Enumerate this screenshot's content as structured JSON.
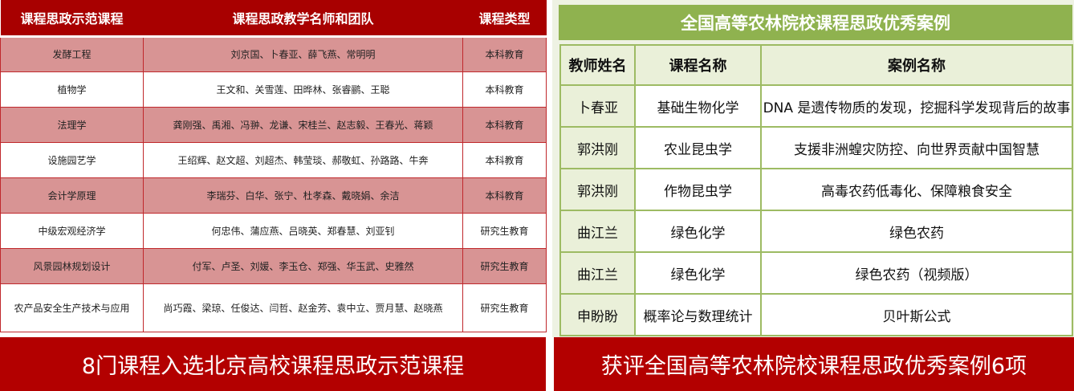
{
  "left": {
    "headers": [
      "课程思政示范课程",
      "课程思政教学名师和团队",
      "课程类型"
    ],
    "rows": [
      {
        "course": "发酵工程",
        "team": "刘京国、卜春亚、薛飞燕、常明明",
        "type": "本科教育"
      },
      {
        "course": "植物学",
        "team": "王文和、关雪莲、田晔林、张睿鹂、王聪",
        "type": "本科教育"
      },
      {
        "course": "法理学",
        "team": "龚刚强、禹湘、冯翀、龙谦、宋桂兰、赵志毅、王春光、蒋颖",
        "type": "本科教育"
      },
      {
        "course": "设施园艺学",
        "team": "王绍辉、赵文超、刘超杰、韩莹琰、郝敬虹、孙路路、牛奔",
        "type": "本科教育"
      },
      {
        "course": "会计学原理",
        "team": "李瑞芬、白华、张宁、杜孝森、戴晓娟、余洁",
        "type": "本科教育"
      },
      {
        "course": "中级宏观经济学",
        "team": "何忠伟、蒲应燕、吕晓英、郑春慧、刘亚钊",
        "type": "研究生教育"
      },
      {
        "course": "风景园林规划设计",
        "team": "付军、卢圣、刘媛、李玉仓、郑强、华玉武、史雅然",
        "type": "研究生教育"
      },
      {
        "course": "农产品安全生产技术与应用",
        "team": "尚巧霞、梁琼、任俊达、闫哲、赵金芳、袁中立、贾月慧、赵晓燕",
        "type": "研究生教育"
      }
    ],
    "banner": "8门课程入选北京高校课程思政示范课程"
  },
  "right": {
    "title": "全国高等农林院校课程思政优秀案例",
    "headers": [
      "教师姓名",
      "课程名称",
      "案例名称"
    ],
    "rows": [
      {
        "teacher": "卜春亚",
        "course": "基础生物化学",
        "case": "DNA 是遗传物质的发现，挖掘科学发现背后的故事"
      },
      {
        "teacher": "郭洪刚",
        "course": "农业昆虫学",
        "case": "支援非洲蝗灾防控、向世界贡献中国智慧"
      },
      {
        "teacher": "郭洪刚",
        "course": "作物昆虫学",
        "case": "高毒农药低毒化、保障粮食安全"
      },
      {
        "teacher": "曲江兰",
        "course": "绿色化学",
        "case": "绿色农药"
      },
      {
        "teacher": "曲江兰",
        "course": "绿色化学",
        "case": "绿色农药（视频版）"
      },
      {
        "teacher": "申盼盼",
        "course": "概率论与数理统计",
        "case": "贝叶斯公式"
      }
    ],
    "banner": "获评全国高等农林院校课程思政优秀案例6项"
  },
  "colors": {
    "red": "#a80000",
    "pink": "#d89494",
    "green": "#8fb24f"
  }
}
